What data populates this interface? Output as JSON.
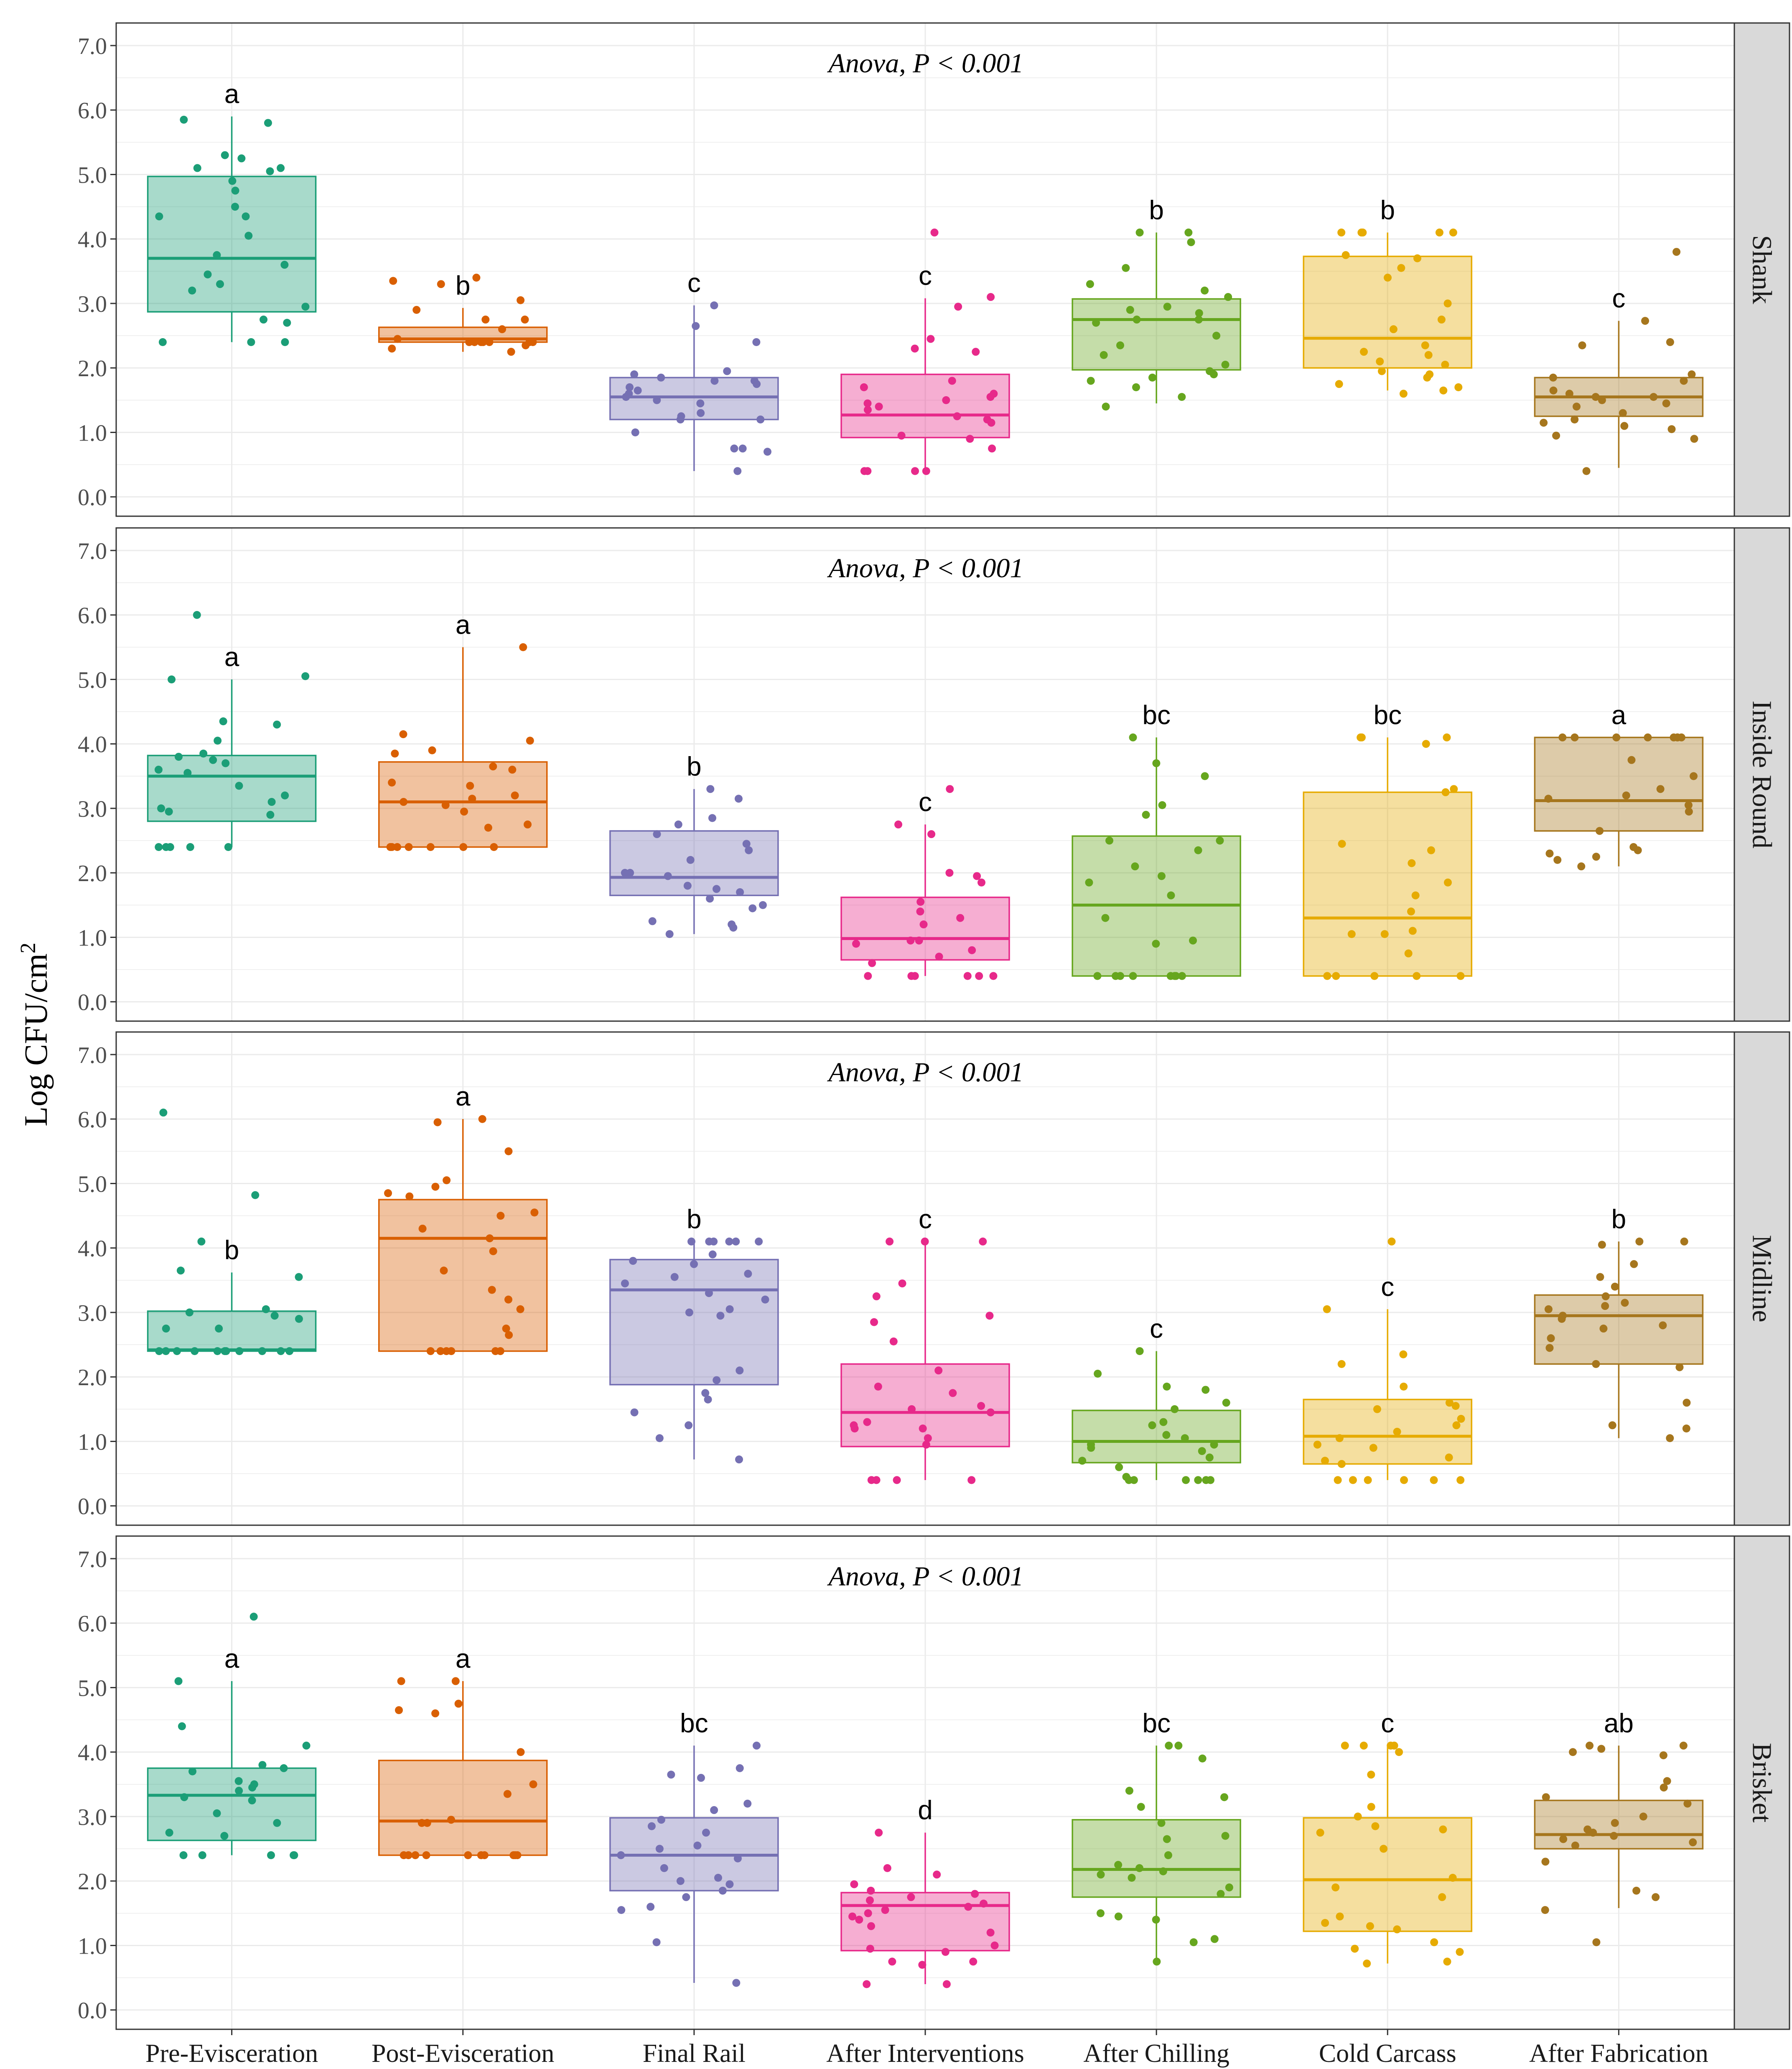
{
  "chart_data": {
    "type": "box",
    "ylabel_main": "Log CFU/cm",
    "ylabel_sup": "2",
    "categories": [
      "Pre-Evisceration",
      "Post-Evisceration",
      "Final Rail",
      "After Interventions",
      "After Chilling",
      "Cold Carcass",
      "After Fabrication"
    ],
    "colors": [
      "#1b9e77",
      "#d95f02",
      "#7570b3",
      "#e7298a",
      "#66a61e",
      "#e6ab02",
      "#a6761d"
    ],
    "ylim": [
      -0.3,
      7.35
    ],
    "yticks": [
      "0.0",
      "1.0",
      "2.0",
      "3.0",
      "4.0",
      "5.0",
      "6.0",
      "7.0"
    ],
    "grid": true,
    "panels": [
      {
        "label": "Shank",
        "annotation": "Anova, P < 0.001",
        "groups": [
          {
            "q1": 2.87,
            "median": 3.7,
            "q3": 4.97,
            "wlow": 2.4,
            "whigh": 5.9,
            "letter": "a",
            "points": [
              5.85,
              5.8,
              5.25,
              5.3,
              5.1,
              5.1,
              5.05,
              4.9,
              4.75,
              4.5,
              4.35,
              4.35,
              4.05,
              3.75,
              3.6,
              3.45,
              3.3,
              3.2,
              2.95,
              2.75,
              2.7,
              2.4,
              2.4,
              2.4
            ]
          },
          {
            "q1": 2.4,
            "median": 2.45,
            "q3": 2.63,
            "wlow": 2.25,
            "whigh": 2.93,
            "letter": "b",
            "points": [
              3.4,
              3.35,
              3.3,
              3.05,
              2.9,
              2.75,
              2.75,
              2.6,
              2.45,
              2.4,
              2.4,
              2.4,
              2.4,
              2.4,
              2.4,
              2.4,
              2.35,
              2.3,
              2.25
            ]
          },
          {
            "q1": 1.2,
            "median": 1.55,
            "q3": 1.85,
            "wlow": 0.4,
            "whigh": 2.97,
            "letter": "c",
            "points": [
              2.97,
              2.65,
              2.4,
              1.95,
              1.9,
              1.85,
              1.8,
              1.8,
              1.75,
              1.7,
              1.65,
              1.6,
              1.55,
              1.5,
              1.45,
              1.3,
              1.25,
              1.2,
              1.2,
              1.0,
              0.75,
              0.75,
              0.7,
              0.4
            ]
          },
          {
            "q1": 0.92,
            "median": 1.27,
            "q3": 1.9,
            "wlow": 0.4,
            "whigh": 3.08,
            "letter": "c",
            "points": [
              4.1,
              3.1,
              2.95,
              2.45,
              2.3,
              2.25,
              1.8,
              1.7,
              1.6,
              1.55,
              1.5,
              1.45,
              1.4,
              1.35,
              1.25,
              1.2,
              1.15,
              0.95,
              0.9,
              0.75,
              0.4,
              0.4,
              0.4,
              0.4
            ]
          },
          {
            "q1": 1.97,
            "median": 2.75,
            "q3": 3.07,
            "wlow": 1.45,
            "whigh": 4.1,
            "letter": "b",
            "points": [
              4.1,
              4.1,
              3.95,
              3.55,
              3.3,
              3.2,
              3.1,
              2.95,
              2.9,
              2.85,
              2.75,
              2.75,
              2.7,
              2.5,
              2.35,
              2.2,
              2.05,
              1.95,
              1.9,
              1.85,
              1.8,
              1.7,
              1.55,
              1.4
            ]
          },
          {
            "q1": 2.0,
            "median": 2.46,
            "q3": 3.73,
            "wlow": 1.65,
            "whigh": 4.1,
            "letter": "b",
            "points": [
              4.1,
              4.1,
              4.1,
              4.1,
              4.1,
              3.75,
              3.7,
              3.55,
              3.4,
              3.0,
              2.75,
              2.6,
              2.35,
              2.25,
              2.2,
              2.1,
              2.05,
              1.95,
              1.9,
              1.85,
              1.75,
              1.7,
              1.65,
              1.6
            ]
          },
          {
            "q1": 1.25,
            "median": 1.55,
            "q3": 1.85,
            "wlow": 0.45,
            "whigh": 2.73,
            "letter": "c",
            "points": [
              3.8,
              2.73,
              2.4,
              2.35,
              1.9,
              1.85,
              1.8,
              1.65,
              1.6,
              1.55,
              1.55,
              1.5,
              1.45,
              1.4,
              1.3,
              1.2,
              1.15,
              1.1,
              1.05,
              0.95,
              0.9,
              0.4
            ]
          }
        ]
      },
      {
        "label": "Inside Round",
        "annotation": "Anova, P < 0.001",
        "groups": [
          {
            "q1": 2.8,
            "median": 3.5,
            "q3": 3.82,
            "wlow": 2.4,
            "whigh": 5.0,
            "letter": "a",
            "points": [
              6.0,
              5.05,
              5.0,
              4.35,
              4.3,
              4.05,
              3.85,
              3.8,
              3.75,
              3.7,
              3.6,
              3.55,
              3.35,
              3.2,
              3.1,
              3.0,
              2.95,
              2.9,
              2.4,
              2.4,
              2.4,
              2.4,
              2.4
            ]
          },
          {
            "q1": 2.4,
            "median": 3.1,
            "q3": 3.72,
            "wlow": 2.4,
            "whigh": 5.5,
            "letter": "a",
            "points": [
              5.5,
              4.15,
              4.05,
              3.9,
              3.85,
              3.65,
              3.6,
              3.4,
              3.35,
              3.2,
              3.15,
              3.1,
              3.05,
              2.95,
              2.75,
              2.7,
              2.4,
              2.4,
              2.4,
              2.4,
              2.4,
              2.4,
              2.4
            ]
          },
          {
            "q1": 1.65,
            "median": 1.93,
            "q3": 2.65,
            "wlow": 1.05,
            "whigh": 3.3,
            "letter": "b",
            "points": [
              3.3,
              3.15,
              2.85,
              2.75,
              2.6,
              2.45,
              2.35,
              2.2,
              2.0,
              2.0,
              1.95,
              1.8,
              1.75,
              1.7,
              1.6,
              1.5,
              1.45,
              1.25,
              1.2,
              1.15,
              1.05
            ]
          },
          {
            "q1": 0.65,
            "median": 0.98,
            "q3": 1.62,
            "wlow": 0.4,
            "whigh": 2.75,
            "letter": "c",
            "points": [
              3.3,
              2.75,
              2.6,
              2.0,
              1.95,
              1.85,
              1.55,
              1.4,
              1.3,
              1.2,
              0.95,
              0.95,
              0.9,
              0.8,
              0.7,
              0.6,
              0.4,
              0.4,
              0.4,
              0.4,
              0.4,
              0.4
            ]
          },
          {
            "q1": 0.4,
            "median": 1.5,
            "q3": 2.57,
            "wlow": 0.4,
            "whigh": 4.1,
            "letter": "bc",
            "points": [
              4.1,
              3.7,
              3.5,
              3.05,
              2.9,
              2.5,
              2.5,
              2.35,
              2.1,
              1.95,
              1.85,
              1.65,
              1.3,
              0.95,
              0.9,
              0.4,
              0.4,
              0.4,
              0.4,
              0.4,
              0.4,
              0.4,
              0.4
            ]
          },
          {
            "q1": 0.4,
            "median": 1.3,
            "q3": 3.25,
            "wlow": 0.4,
            "whigh": 4.1,
            "letter": "bc",
            "points": [
              4.1,
              4.1,
              4.1,
              4.0,
              3.3,
              3.25,
              2.45,
              2.35,
              2.15,
              1.85,
              1.65,
              1.4,
              1.1,
              1.05,
              1.05,
              0.75,
              0.4,
              0.4,
              0.4,
              0.4,
              0.4
            ]
          },
          {
            "q1": 2.65,
            "median": 3.12,
            "q3": 4.1,
            "wlow": 2.1,
            "whigh": 4.1,
            "letter": "a",
            "points": [
              4.1,
              4.1,
              4.1,
              4.1,
              4.1,
              4.1,
              4.1,
              4.1,
              3.75,
              3.5,
              3.3,
              3.2,
              3.15,
              3.05,
              2.95,
              2.65,
              2.4,
              2.35,
              2.3,
              2.25,
              2.2,
              2.1
            ]
          }
        ]
      },
      {
        "label": "Midline",
        "annotation": "Anova, P < 0.001",
        "groups": [
          {
            "q1": 2.4,
            "median": 2.42,
            "q3": 3.02,
            "wlow": 2.4,
            "whigh": 3.62,
            "letter": "b",
            "points": [
              6.1,
              4.82,
              4.1,
              3.65,
              3.55,
              3.05,
              3.0,
              2.95,
              2.9,
              2.75,
              2.75,
              2.4,
              2.4,
              2.4,
              2.4,
              2.4,
              2.4,
              2.4,
              2.4,
              2.4,
              2.4,
              2.4
            ]
          },
          {
            "q1": 2.4,
            "median": 4.15,
            "q3": 4.75,
            "wlow": 2.4,
            "whigh": 6.0,
            "letter": "a",
            "points": [
              6.0,
              5.95,
              5.5,
              5.05,
              4.95,
              4.85,
              4.8,
              4.55,
              4.5,
              4.3,
              4.15,
              3.95,
              3.65,
              3.35,
              3.2,
              3.05,
              2.75,
              2.65,
              2.4,
              2.4,
              2.4,
              2.4,
              2.4,
              2.4
            ]
          },
          {
            "q1": 1.88,
            "median": 3.35,
            "q3": 3.82,
            "wlow": 0.72,
            "whigh": 4.1,
            "letter": "b",
            "points": [
              4.1,
              4.1,
              4.1,
              4.1,
              4.1,
              4.1,
              3.9,
              3.8,
              3.75,
              3.6,
              3.55,
              3.45,
              3.3,
              3.2,
              3.05,
              3.0,
              2.95,
              2.1,
              1.95,
              1.75,
              1.65,
              1.45,
              1.25,
              1.05,
              0.72
            ]
          },
          {
            "q1": 0.92,
            "median": 1.45,
            "q3": 2.2,
            "wlow": 0.4,
            "whigh": 4.1,
            "letter": "c",
            "points": [
              4.1,
              4.1,
              4.1,
              3.45,
              3.25,
              2.95,
              2.85,
              2.55,
              2.1,
              1.85,
              1.75,
              1.55,
              1.5,
              1.45,
              1.3,
              1.25,
              1.2,
              1.2,
              1.05,
              0.95,
              0.4,
              0.4,
              0.4,
              0.4
            ]
          },
          {
            "q1": 0.67,
            "median": 1.0,
            "q3": 1.48,
            "wlow": 0.4,
            "whigh": 2.4,
            "letter": "c",
            "points": [
              2.4,
              2.05,
              1.85,
              1.8,
              1.6,
              1.5,
              1.3,
              1.25,
              1.1,
              1.05,
              0.95,
              0.95,
              0.9,
              0.85,
              0.75,
              0.7,
              0.6,
              0.45,
              0.4,
              0.4,
              0.4,
              0.4,
              0.4,
              0.4
            ]
          },
          {
            "q1": 0.65,
            "median": 1.08,
            "q3": 1.65,
            "wlow": 0.4,
            "whigh": 3.05,
            "letter": "c",
            "points": [
              4.1,
              3.05,
              2.35,
              2.2,
              1.85,
              1.6,
              1.55,
              1.5,
              1.35,
              1.25,
              1.15,
              1.05,
              0.95,
              0.9,
              0.75,
              0.7,
              0.65,
              0.4,
              0.4,
              0.4,
              0.4,
              0.4,
              0.4
            ]
          },
          {
            "q1": 2.2,
            "median": 2.95,
            "q3": 3.27,
            "wlow": 1.05,
            "whigh": 4.1,
            "letter": "b",
            "points": [
              4.1,
              4.1,
              4.05,
              3.75,
              3.55,
              3.4,
              3.25,
              3.15,
              3.1,
              3.05,
              2.95,
              2.9,
              2.8,
              2.75,
              2.6,
              2.45,
              2.2,
              2.15,
              1.6,
              1.25,
              1.2,
              1.05
            ]
          }
        ]
      },
      {
        "label": "Brisket",
        "annotation": "Anova, P < 0.001",
        "groups": [
          {
            "q1": 2.63,
            "median": 3.33,
            "q3": 3.75,
            "wlow": 2.4,
            "whigh": 5.1,
            "letter": "a",
            "points": [
              6.1,
              5.1,
              4.4,
              4.1,
              3.8,
              3.75,
              3.7,
              3.55,
              3.5,
              3.45,
              3.4,
              3.3,
              3.25,
              3.05,
              2.9,
              2.75,
              2.7,
              2.4,
              2.4,
              2.4,
              2.4,
              2.4
            ]
          },
          {
            "q1": 2.4,
            "median": 2.93,
            "q3": 3.87,
            "wlow": 2.4,
            "whigh": 5.1,
            "letter": "a",
            "points": [
              5.1,
              5.1,
              4.75,
              4.65,
              4.6,
              4.0,
              3.5,
              3.35,
              2.95,
              2.9,
              2.9,
              2.4,
              2.4,
              2.4,
              2.4,
              2.4,
              2.4,
              2.4,
              2.4,
              2.4,
              2.4
            ]
          },
          {
            "q1": 1.85,
            "median": 2.4,
            "q3": 2.98,
            "wlow": 0.42,
            "whigh": 4.1,
            "letter": "bc",
            "points": [
              4.1,
              3.75,
              3.65,
              3.6,
              3.2,
              3.1,
              2.95,
              2.85,
              2.75,
              2.55,
              2.5,
              2.4,
              2.35,
              2.2,
              2.05,
              2.0,
              1.95,
              1.85,
              1.75,
              1.6,
              1.55,
              1.05,
              0.42
            ]
          },
          {
            "q1": 0.92,
            "median": 1.62,
            "q3": 1.82,
            "wlow": 0.4,
            "whigh": 2.75,
            "letter": "d",
            "points": [
              2.75,
              2.2,
              2.1,
              1.95,
              1.85,
              1.8,
              1.75,
              1.7,
              1.65,
              1.6,
              1.55,
              1.5,
              1.45,
              1.4,
              1.3,
              1.2,
              1.0,
              0.95,
              0.9,
              0.75,
              0.75,
              0.7,
              0.4,
              0.4
            ]
          },
          {
            "q1": 1.75,
            "median": 2.18,
            "q3": 2.95,
            "wlow": 0.75,
            "whigh": 4.1,
            "letter": "bc",
            "points": [
              4.1,
              4.1,
              3.9,
              3.4,
              3.3,
              3.15,
              2.9,
              2.7,
              2.65,
              2.4,
              2.25,
              2.2,
              2.15,
              2.1,
              2.05,
              1.9,
              1.8,
              1.5,
              1.45,
              1.4,
              1.1,
              1.05,
              0.75
            ]
          },
          {
            "q1": 1.22,
            "median": 2.02,
            "q3": 2.98,
            "wlow": 0.72,
            "whigh": 4.1,
            "letter": "c",
            "points": [
              4.1,
              4.1,
              4.1,
              4.1,
              4.0,
              3.65,
              3.15,
              3.0,
              2.85,
              2.8,
              2.75,
              2.5,
              2.05,
              1.9,
              1.75,
              1.45,
              1.35,
              1.3,
              1.25,
              1.05,
              0.95,
              0.9,
              0.75,
              0.72
            ]
          },
          {
            "q1": 2.5,
            "median": 2.72,
            "q3": 3.25,
            "wlow": 1.58,
            "whigh": 4.1,
            "letter": "ab",
            "points": [
              4.1,
              4.1,
              4.05,
              4.0,
              3.95,
              3.55,
              3.45,
              3.3,
              3.2,
              3.0,
              2.9,
              2.8,
              2.75,
              2.7,
              2.65,
              2.6,
              2.55,
              2.3,
              1.85,
              1.75,
              1.55,
              1.05
            ]
          }
        ]
      }
    ]
  }
}
